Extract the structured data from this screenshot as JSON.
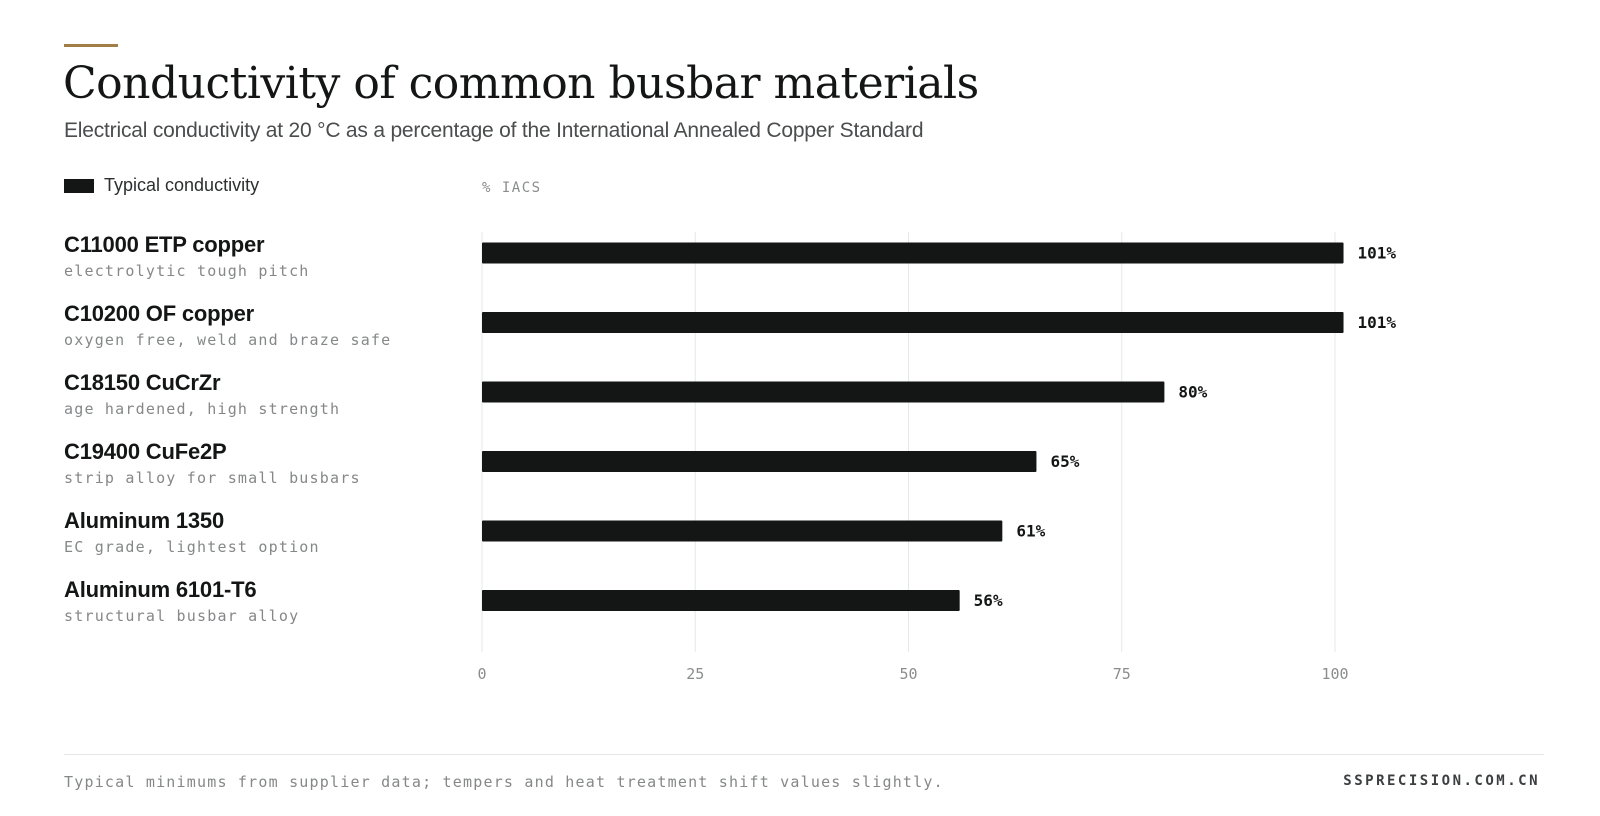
{
  "header": {
    "title": "Conductivity of common busbar materials",
    "subtitle": "Electrical conductivity at 20 °C as a percentage of the International Annealed Copper Standard"
  },
  "legend": {
    "label": "Typical conductivity"
  },
  "colors": {
    "bar": "#141515",
    "grid": "#e6e7e8",
    "accent": "#a07e46",
    "tick": "#8a8c8d"
  },
  "chart_data": {
    "type": "bar",
    "orientation": "horizontal",
    "title": "Conductivity of common busbar materials",
    "subtitle": "Electrical conductivity at 20 °C as a percentage of the International Annealed Copper Standard",
    "xlabel": "% IACS",
    "ylabel": "",
    "xlim": [
      0,
      100
    ],
    "xticks": [
      0,
      25,
      50,
      75,
      100
    ],
    "grid": true,
    "legend_position": "top-left",
    "categories": [
      "C11000 ETP copper",
      "C10200 OF copper",
      "C18150 CuCrZr",
      "C19400 CuFe2P",
      "Aluminum 1350",
      "Aluminum 6101-T6"
    ],
    "descriptions": [
      "electrolytic tough pitch",
      "oxygen free, weld and braze safe",
      "age hardened, high strength",
      "strip alloy for small busbars",
      "EC grade, lightest option",
      "structural busbar alloy"
    ],
    "series": [
      {
        "name": "Typical conductivity",
        "values": [
          101,
          101,
          80,
          65,
          61,
          56
        ]
      }
    ],
    "value_labels": [
      "101%",
      "101%",
      "80%",
      "65%",
      "61%",
      "56%"
    ]
  },
  "footer": {
    "note": "Typical minimums from supplier data; tempers and heat treatment shift values slightly.",
    "brand": "SSPRECISION.COM.CN"
  }
}
